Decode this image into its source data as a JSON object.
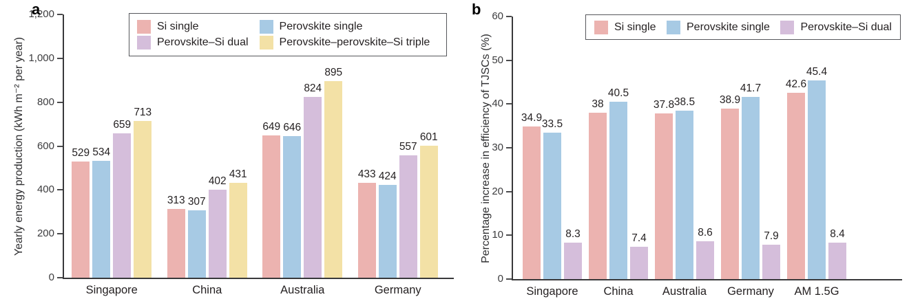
{
  "figure": {
    "background": "#ffffff",
    "text_color": "#231f20"
  },
  "chart_data": [
    {
      "type": "bar",
      "panel_label": "a",
      "title": "",
      "xlabel": "",
      "ylabel": "Yearly energy production (kWh m⁻² per year)",
      "categories": [
        "Singapore",
        "China",
        "Australia",
        "Germany"
      ],
      "series": [
        {
          "name": "Si single",
          "color": "#ECB3B0",
          "values": [
            529,
            313,
            649,
            433
          ]
        },
        {
          "name": "Perovskite single",
          "color": "#A7CAE4",
          "values": [
            534,
            307,
            646,
            424
          ]
        },
        {
          "name": "Perovskite–Si dual",
          "color": "#D5BEDB",
          "values": [
            659,
            402,
            824,
            557
          ]
        },
        {
          "name": "Perovskite–perovskite–Si triple",
          "color": "#F3E1A6",
          "values": [
            713,
            431,
            895,
            601
          ]
        }
      ],
      "ylim": [
        0,
        1200
      ],
      "yticks": [
        0,
        200,
        400,
        600,
        800,
        1000,
        1200
      ],
      "ytick_labels": [
        "0",
        "200",
        "400",
        "600",
        "800",
        "1,000",
        "1,200"
      ],
      "grid": false,
      "value_labels": true,
      "legend_position": "top",
      "legend_order": [
        "Si single",
        "Perovskite single",
        "Perovskite–Si dual",
        "Perovskite–perovskite–Si triple"
      ]
    },
    {
      "type": "bar",
      "panel_label": "b",
      "title": "",
      "xlabel": "",
      "ylabel": "Percentage increase in efficiency of TJSCs (%)",
      "categories": [
        "Singapore",
        "China",
        "Australia",
        "Germany",
        "AM 1.5G"
      ],
      "series": [
        {
          "name": "Si single",
          "color": "#ECB3B0",
          "values": [
            34.9,
            38,
            37.8,
            38.9,
            42.6
          ]
        },
        {
          "name": "Perovskite single",
          "color": "#A7CAE4",
          "values": [
            33.5,
            40.5,
            38.5,
            41.7,
            45.4
          ]
        },
        {
          "name": "Perovskite–Si dual",
          "color": "#D5BEDB",
          "values": [
            8.3,
            7.4,
            8.6,
            7.9,
            8.4
          ]
        }
      ],
      "ylim": [
        0,
        60
      ],
      "yticks": [
        0,
        10,
        20,
        30,
        40,
        50,
        60
      ],
      "ytick_labels": [
        "0",
        "10",
        "20",
        "30",
        "40",
        "50",
        "60"
      ],
      "grid": false,
      "value_labels": true,
      "legend_position": "top",
      "legend_order": [
        "Si single",
        "Perovskite single",
        "Perovskite–Si dual"
      ]
    }
  ]
}
